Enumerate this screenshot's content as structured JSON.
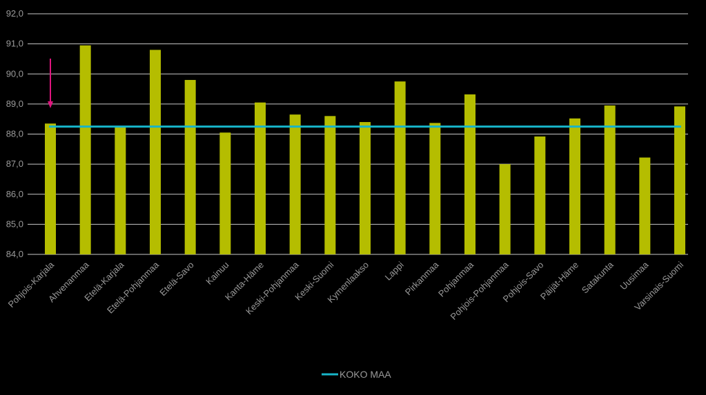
{
  "chart_data": {
    "type": "bar",
    "title": "",
    "xlabel": "",
    "ylabel": "",
    "ylim": [
      84.0,
      92.0
    ],
    "yticks": [
      "84,0",
      "85,0",
      "86,0",
      "87,0",
      "88,0",
      "89,0",
      "90,0",
      "91,0",
      "92,0"
    ],
    "grid": true,
    "categories": [
      "Pohjois-Karjala",
      "Ahvenanmaa",
      "Etelä-Karjala",
      "Etelä-Pohjanmaa",
      "Etelä-Savo",
      "Kainuu",
      "Kanta-Häme",
      "Keski-Pohjanmaa",
      "Keski-Suomi",
      "Kymenlaakso",
      "Lappi",
      "Pirkanmaa",
      "Pohjanmaa",
      "Pohjois-Pohjanmaa",
      "Pohjois-Savo",
      "Päijät-Häme",
      "Satakunta",
      "Uusimaa",
      "Varsinais-Suomi"
    ],
    "series": [
      {
        "name": "",
        "color": "#b5bd00",
        "values": [
          88.35,
          90.95,
          88.25,
          90.8,
          89.8,
          88.05,
          89.05,
          88.65,
          88.6,
          88.4,
          89.75,
          88.37,
          89.32,
          87.0,
          87.92,
          88.52,
          88.95,
          87.22,
          88.92
        ]
      }
    ],
    "reference_line": {
      "name": "KOKO MAA",
      "value": 88.25,
      "color": "#17b5c9"
    },
    "annotation": {
      "type": "arrow",
      "category": "Pohjois-Karjala",
      "color": "#e0157f"
    },
    "legend": {
      "position": "bottom-center",
      "entries": [
        "KOKO MAA"
      ]
    }
  }
}
